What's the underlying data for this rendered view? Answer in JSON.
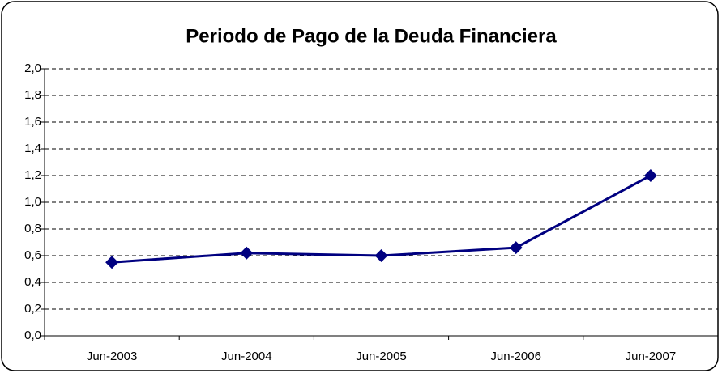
{
  "chart_data": {
    "type": "line",
    "title": "Periodo de Pago de la Deuda Financiera",
    "categories": [
      "Jun-2003",
      "Jun-2004",
      "Jun-2005",
      "Jun-2006",
      "Jun-2007"
    ],
    "series": [
      {
        "name": null,
        "color": "#000080",
        "values": [
          0.55,
          0.62,
          0.6,
          0.66,
          1.2
        ]
      }
    ],
    "ylim": [
      0,
      2
    ],
    "yticks": [
      {
        "value": 0,
        "label": "0,0"
      },
      {
        "value": 0.2,
        "label": "0,2"
      },
      {
        "value": 0.4,
        "label": "0,4"
      },
      {
        "value": 0.6,
        "label": "0,6"
      },
      {
        "value": 0.8,
        "label": "0,8"
      },
      {
        "value": 1.0,
        "label": "1,0"
      },
      {
        "value": 1.2,
        "label": "1,2"
      },
      {
        "value": 1.4,
        "label": "1,4"
      },
      {
        "value": 1.6,
        "label": "1,6"
      },
      {
        "value": 1.8,
        "label": "1,8"
      },
      {
        "value": 2.0,
        "label": "2,0"
      }
    ],
    "grid": true,
    "legend": false
  }
}
